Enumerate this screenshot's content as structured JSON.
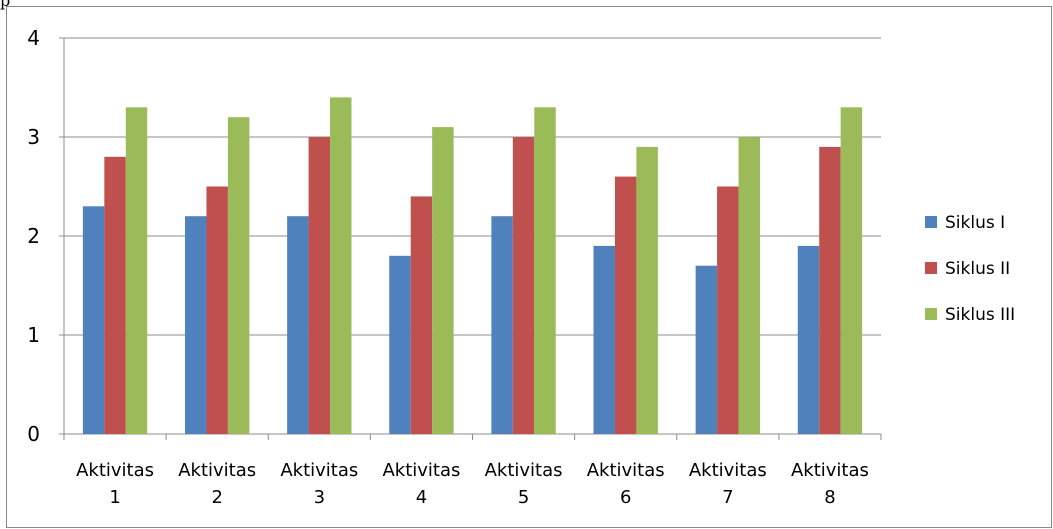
{
  "top_text": "p",
  "chart_data": {
    "type": "bar",
    "categories": [
      [
        "Aktivitas",
        "1"
      ],
      [
        "Aktivitas",
        "2"
      ],
      [
        "Aktivitas",
        "3"
      ],
      [
        "Aktivitas",
        "4"
      ],
      [
        "Aktivitas",
        "5"
      ],
      [
        "Aktivitas",
        "6"
      ],
      [
        "Aktivitas",
        "7"
      ],
      [
        "Aktivitas",
        "8"
      ]
    ],
    "series": [
      {
        "name": "Siklus I",
        "color": "#4f81bd",
        "values": [
          2.3,
          2.2,
          2.2,
          1.8,
          2.2,
          1.9,
          1.7,
          1.9
        ]
      },
      {
        "name": "Siklus II",
        "color": "#c0504d",
        "values": [
          2.8,
          2.5,
          3.0,
          2.4,
          3.0,
          2.6,
          2.5,
          2.9
        ]
      },
      {
        "name": "Siklus III",
        "color": "#9bbb59",
        "values": [
          3.3,
          3.2,
          3.4,
          3.1,
          3.3,
          2.9,
          3.0,
          3.3
        ]
      }
    ],
    "ylim": [
      0,
      4
    ],
    "yticks": [
      0,
      1,
      2,
      3,
      4
    ],
    "grid": true,
    "legend_position": "right",
    "title": "",
    "xlabel": "",
    "ylabel": ""
  }
}
